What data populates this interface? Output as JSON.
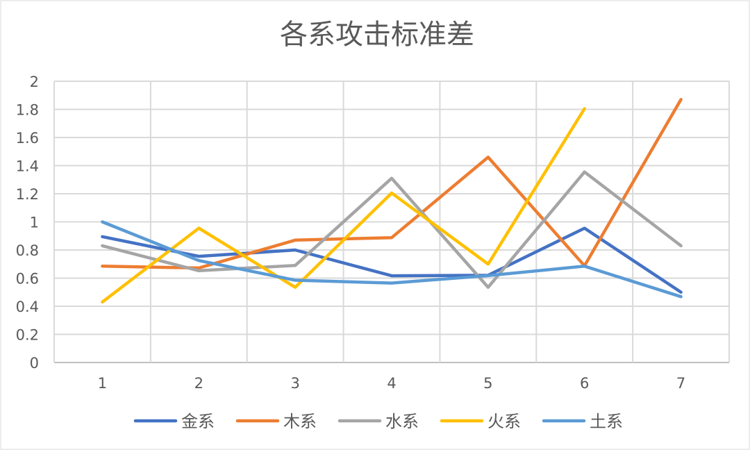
{
  "chart_data": {
    "type": "line",
    "title": "各系攻击标准差",
    "x": [
      "1",
      "2",
      "3",
      "4",
      "5",
      "6",
      "7"
    ],
    "ylim": [
      0,
      2
    ],
    "yticks": [
      "0",
      "0.2",
      "0.4",
      "0.6",
      "0.8",
      "1",
      "1.2",
      "1.4",
      "1.6",
      "1.8",
      "2"
    ],
    "grid": true,
    "legend_position": "bottom",
    "series": [
      {
        "name": "金系",
        "color": "#4472C4",
        "values": [
          0.895,
          0.755,
          0.8,
          0.617,
          0.62,
          0.955,
          0.5
        ]
      },
      {
        "name": "木系",
        "color": "#ED7D31",
        "values": [
          0.685,
          0.672,
          0.87,
          0.888,
          1.46,
          0.688,
          1.87
        ]
      },
      {
        "name": "水系",
        "color": "#A5A5A5",
        "values": [
          0.83,
          0.653,
          0.69,
          1.31,
          0.535,
          1.355,
          0.83
        ]
      },
      {
        "name": "火系",
        "color": "#FFC000",
        "values": [
          0.43,
          0.955,
          0.535,
          1.205,
          0.7,
          1.805,
          null
        ]
      },
      {
        "name": "土系",
        "color": "#5B9BD5",
        "values": [
          1.0,
          0.725,
          0.585,
          0.565,
          0.618,
          0.685,
          0.468
        ]
      }
    ]
  }
}
